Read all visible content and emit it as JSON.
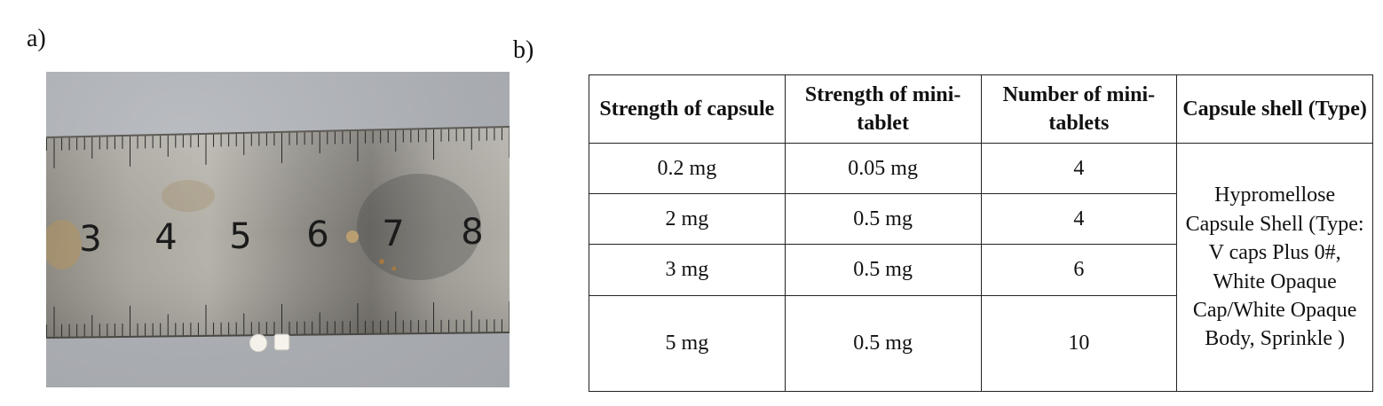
{
  "panel_a": {
    "label": "a)",
    "ruler_numbers": [
      "3",
      "4",
      "5",
      "6",
      "7",
      "8"
    ]
  },
  "panel_b": {
    "label": "b)",
    "table": {
      "headers": [
        "Strength of capsule",
        "Strength of mini-tablet",
        "Number of mini-tablets",
        "Capsule shell (Type)"
      ],
      "rows": [
        {
          "capsule": "0.2 mg",
          "tablet": "0.05 mg",
          "count": "4"
        },
        {
          "capsule": "2 mg",
          "tablet": "0.5 mg",
          "count": "4"
        },
        {
          "capsule": "3 mg",
          "tablet": "0.5 mg",
          "count": "6"
        },
        {
          "capsule": "5 mg",
          "tablet": "0.5 mg",
          "count": "10"
        }
      ],
      "shell_type": "Hypromellose Capsule Shell (Type: V caps Plus 0#, White Opaque Cap/White Opaque Body, Sprinkle )"
    }
  }
}
